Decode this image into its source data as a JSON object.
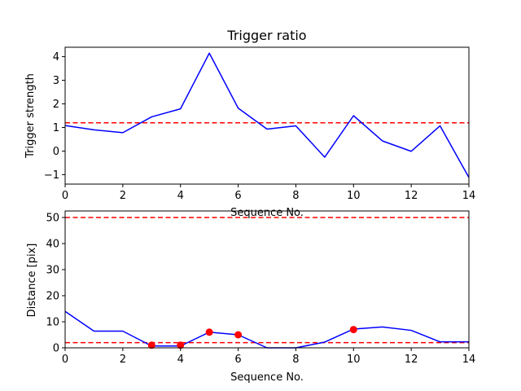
{
  "chart_data": [
    {
      "type": "line",
      "title": "Trigger ratio",
      "xlabel": "Sequence No.",
      "ylabel": "Trigger strength",
      "xlim": [
        0,
        14
      ],
      "ylim": [
        -1.4,
        4.4
      ],
      "xticks": [
        0,
        2,
        4,
        6,
        8,
        10,
        12,
        14
      ],
      "yticks": [
        -1,
        0,
        1,
        2,
        3,
        4
      ],
      "grid": false,
      "series": [
        {
          "color": "#0000ff",
          "style": "solid",
          "x": [
            0,
            1,
            2,
            3,
            4,
            5,
            6,
            7,
            8,
            9,
            10,
            11,
            12,
            13,
            14
          ],
          "y": [
            1.08,
            0.9,
            0.78,
            1.45,
            1.79,
            4.15,
            1.82,
            0.93,
            1.07,
            -0.26,
            1.5,
            0.43,
            -0.01,
            1.07,
            -1.12
          ]
        }
      ],
      "hlines": [
        {
          "y": 1.2,
          "color": "#ff0000",
          "style": "dashed"
        }
      ]
    },
    {
      "type": "line",
      "xlabel": "Sequence No.",
      "ylabel": "Distance [pix]",
      "xlim": [
        0,
        14
      ],
      "ylim": [
        0,
        52.5
      ],
      "xticks": [
        0,
        2,
        4,
        6,
        8,
        10,
        12,
        14
      ],
      "yticks": [
        0,
        10,
        20,
        30,
        40,
        50
      ],
      "grid": false,
      "series": [
        {
          "color": "#0000ff",
          "style": "solid",
          "x": [
            0,
            1,
            2,
            3,
            4,
            5,
            6,
            7,
            8,
            9,
            10,
            11,
            12,
            13,
            14
          ],
          "y": [
            14,
            6.4,
            6.4,
            0.7,
            0.7,
            6,
            5,
            0,
            0,
            2.2,
            7.2,
            8,
            6.7,
            2.3,
            2.3
          ]
        }
      ],
      "markers": {
        "color": "#ff0000",
        "x": [
          3,
          4,
          5,
          6,
          10
        ],
        "y": [
          1,
          1,
          6,
          5,
          7
        ]
      },
      "hlines": [
        {
          "y": 50,
          "color": "#ff0000",
          "style": "dashed"
        },
        {
          "y": 2,
          "color": "#ff0000",
          "style": "dashed"
        }
      ]
    }
  ]
}
